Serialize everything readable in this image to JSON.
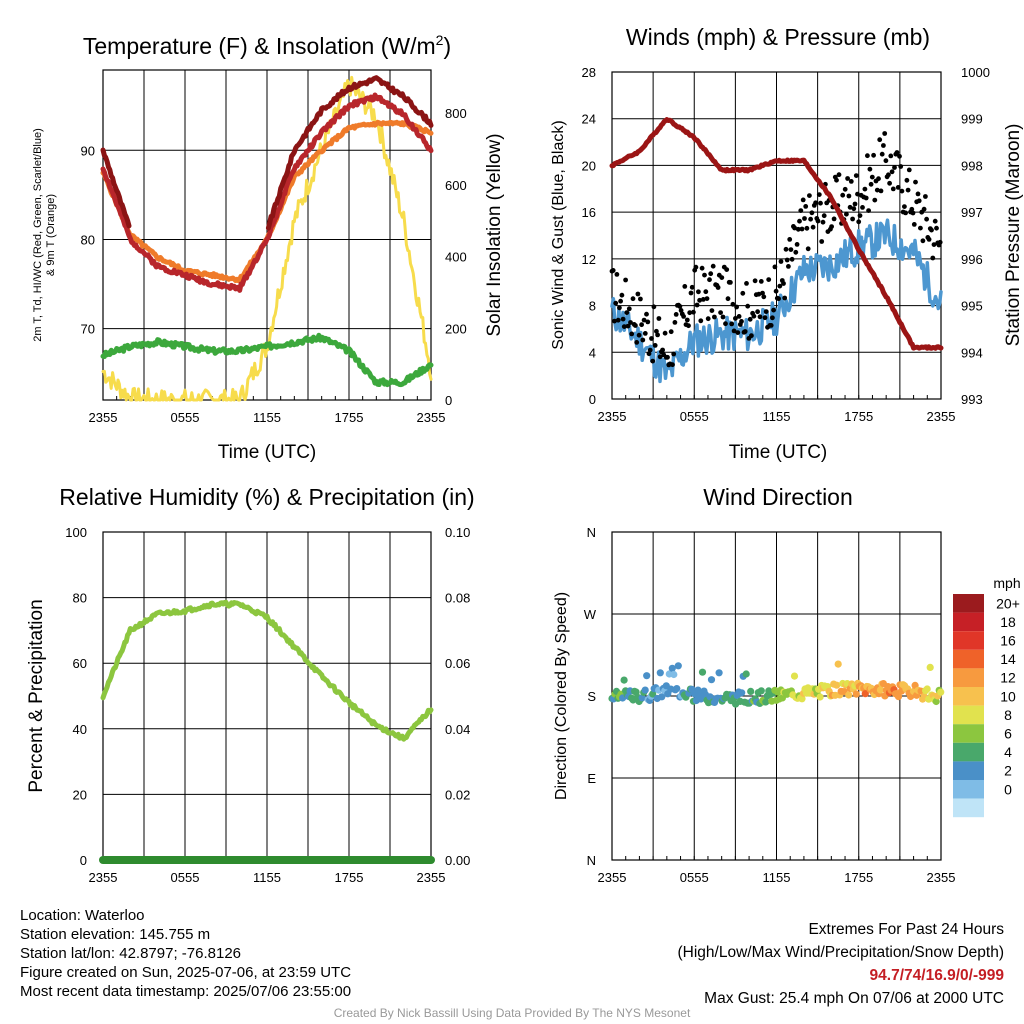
{
  "colors": {
    "temp": "#b8262b",
    "dewpoint": "#3ca83c",
    "heatindex": "#8b1414",
    "temp9m": "#ef7b2a",
    "solar": "#f7dc4c",
    "wind": "#4d97d0",
    "gust": "#000000",
    "pressure": "#9b1515",
    "rh": "#8cc63f",
    "precip": "#2e8b2e",
    "extremes": "#c41e24"
  },
  "x_ticks": [
    "2355",
    "0555",
    "1155",
    "1755",
    "2355"
  ],
  "chart_data": [
    {
      "id": "temp_solar",
      "type": "line",
      "title": "Temperature (F) & Insolation (W/m²)",
      "title_main": "Temperature (F) & Insolation (W/m",
      "title_sup": "2",
      "title_end": ")",
      "xlabel": "Time (UTC)",
      "ylabel_left_line1": "2m T, Td, HI/WC (Red, Green, Scarlet/Blue)",
      "ylabel_left_line2": "& 9m T (Orange)",
      "ylabel_right": "Solar Insolation (Yellow)",
      "ylim_left": [
        62,
        99
      ],
      "ylim_right": [
        0,
        920
      ],
      "yticks_left": [
        70,
        80,
        90
      ],
      "yticks_right": [
        0,
        200,
        400,
        600,
        800
      ],
      "x_hours": [
        0,
        2,
        4,
        6,
        8,
        10,
        12,
        14,
        16,
        18,
        20,
        22,
        24
      ],
      "series": [
        {
          "key": "temp",
          "values": [
            88,
            80,
            77,
            76,
            75,
            74.5,
            80,
            88,
            92,
            95,
            96,
            94,
            90
          ]
        },
        {
          "key": "temp9m",
          "values": [
            87.5,
            80.5,
            78,
            76.5,
            76,
            75.5,
            80,
            87,
            90,
            92.5,
            93,
            93,
            92
          ]
        },
        {
          "key": "heatindex",
          "values": [
            90,
            81,
            null,
            null,
            null,
            null,
            81,
            90,
            94.5,
            97,
            98,
            96,
            93
          ]
        },
        {
          "key": "dewpoint",
          "values": [
            67,
            68,
            68.5,
            68,
            67.5,
            67.5,
            68,
            68.5,
            69,
            67.5,
            64,
            64,
            66
          ]
        },
        {
          "key": "solar",
          "values": [
            80,
            5,
            0,
            0,
            0,
            0,
            150,
            500,
            700,
            880,
            790,
            500,
            80
          ]
        }
      ]
    },
    {
      "id": "wind_pressure",
      "type": "line",
      "title": "Winds (mph) & Pressure (mb)",
      "xlabel": "Time (UTC)",
      "ylabel_left": "Sonic Wind & Gust (Blue, Black)",
      "ylabel_right": "Station Pressure (Maroon)",
      "ylim_left": [
        0,
        28
      ],
      "ylim_right": [
        993,
        1000
      ],
      "yticks_left": [
        0,
        4,
        8,
        12,
        16,
        20,
        24,
        28
      ],
      "yticks_right": [
        993,
        994,
        995,
        996,
        997,
        998,
        999,
        1000
      ],
      "x_hours": [
        0,
        2,
        4,
        6,
        8,
        10,
        12,
        14,
        16,
        18,
        20,
        22,
        24
      ],
      "series": [
        {
          "key": "wind",
          "values": [
            7.5,
            5,
            2,
            5,
            5.5,
            5.5,
            7,
            11,
            11.5,
            13,
            14,
            12.5,
            8
          ]
        },
        {
          "key": "gust",
          "values": [
            9,
            7,
            4,
            9,
            9,
            7.5,
            9,
            15,
            16.5,
            17.5,
            20.5,
            17,
            13
          ]
        },
        {
          "key": "pressure",
          "values": [
            998.0,
            998.3,
            999.0,
            998.6,
            997.9,
            997.9,
            998.1,
            998.1,
            997.3,
            996.2,
            995.2,
            994.1,
            994.1
          ]
        }
      ]
    },
    {
      "id": "rh_precip",
      "type": "line",
      "title": "Relative Humidity (%) & Precipitation (in)",
      "ylabel_left": "Percent & Precipitation",
      "ylim_left": [
        0,
        100
      ],
      "ylim_right": [
        0,
        0.1
      ],
      "yticks_left": [
        0,
        20,
        40,
        60,
        80,
        100
      ],
      "yticks_right": [
        "0.00",
        "0.02",
        "0.04",
        "0.06",
        "0.08",
        "0.10"
      ],
      "x_hours": [
        0,
        2,
        4,
        6,
        8,
        10,
        12,
        14,
        16,
        18,
        20,
        22,
        24
      ],
      "series": [
        {
          "key": "rh",
          "values": [
            50,
            70,
            75,
            76,
            78,
            78,
            74,
            65,
            56,
            48,
            41,
            37,
            46
          ]
        },
        {
          "key": "precip",
          "values": [
            0,
            0,
            0,
            0,
            0,
            0,
            0,
            0,
            0,
            0,
            0,
            0,
            0
          ]
        }
      ]
    },
    {
      "id": "wind_direction",
      "type": "scatter",
      "title": "Wind Direction",
      "ylabel_left": "Direction (Colored By Speed)",
      "yticks_left": [
        "N",
        "E",
        "S",
        "W",
        "N"
      ],
      "ylim_left": [
        0,
        360
      ],
      "legend_title": "mph",
      "legend_labels": [
        "20+",
        "18",
        "16",
        "14",
        "12",
        "10",
        "8",
        "6",
        "4",
        "2",
        "0"
      ],
      "legend_colors": [
        "#9b1b1e",
        "#c62026",
        "#e03628",
        "#ef6229",
        "#f79a3f",
        "#f7c14e",
        "#e1e24e",
        "#8cc63f",
        "#49a86b",
        "#4a90c8",
        "#7fbce6",
        "#bfe4f7"
      ],
      "x_hours": [
        0,
        2,
        4,
        6,
        8,
        10,
        12,
        14,
        16,
        18,
        20,
        22,
        24
      ],
      "direction_deg": [
        178,
        180,
        185,
        180,
        178,
        178,
        180,
        183,
        186,
        188,
        187,
        185,
        180
      ],
      "speed_mph": [
        7,
        4,
        3,
        5,
        5,
        5,
        8,
        10,
        11,
        13,
        14,
        13,
        9
      ]
    }
  ],
  "info": {
    "location": "Location: Waterloo",
    "elevation": "Station elevation: 145.755 m",
    "latlon": "Station lat/lon: 42.8797; -76.8126",
    "created": "Figure created on Sun, 2025-07-06, at 23:59 UTC",
    "recent": "Most recent data timestamp: 2025/07/06 23:55:00",
    "extremes_title": "Extremes For Past 24 Hours",
    "extremes_subtitle": "(High/Low/Max Wind/Precipitation/Snow Depth)",
    "extremes_values": "94.7/74/16.9/0/-999",
    "max_gust": "Max Gust: 25.4 mph On 07/06 at 2000 UTC",
    "credit": "Created By Nick Bassill Using Data Provided By The NYS Mesonet"
  }
}
